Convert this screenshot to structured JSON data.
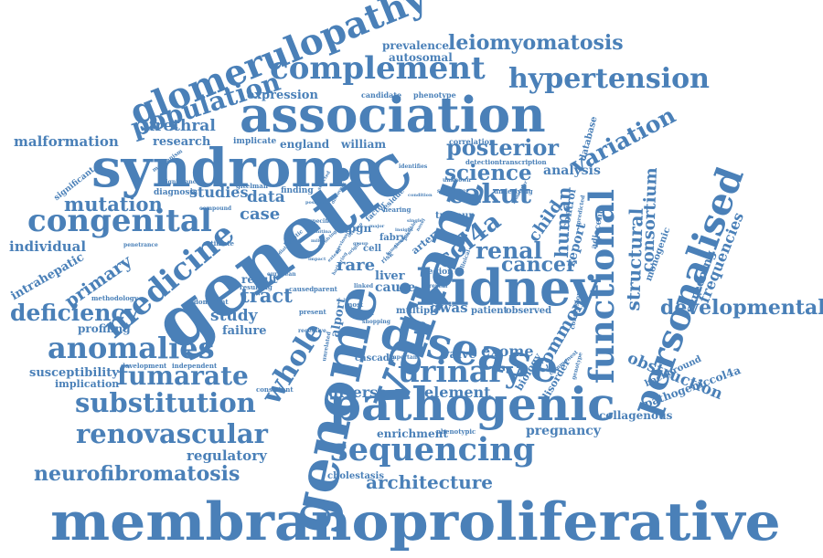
{
  "color": "#4a80b8",
  "words": {
    "membranoproliferative": "membranoproliferative",
    "genetic": "genetic",
    "variant": "variant",
    "genome": "genome",
    "syndrome": "syndrome",
    "association": "association",
    "kidney": "kidney",
    "pathogenic": "pathogenic",
    "disease": "disease",
    "personalised": "personalised",
    "functional": "functional",
    "glomerulopathy": "glomerulopathy",
    "complement": "complement",
    "congenital": "congenital",
    "medicine": "medicine",
    "sequencing": "sequencing",
    "anomalies": "anomalies",
    "substitution": "substitution",
    "renovascular": "renovascular",
    "urinary": "urinary",
    "fumarate": "fumarate",
    "hypertension": "hypertension",
    "population": "population",
    "neurofibromatosis": "neurofibromatosis",
    "developmental": "developmental",
    "leiomyomatosis": "leiomyomatosis",
    "whole": "whole",
    "deficiency": "deficiency",
    "col4a": "col4a",
    "cakut": "cakut",
    "posterior": "posterior",
    "science": "science",
    "renal": "renal",
    "variation": "variation",
    "cancer": "cancer",
    "mutation": "mutation",
    "tract": "tract",
    "architecture": "architecture",
    "diverse": "diverse",
    "element": "element",
    "exome": "exome",
    "structural": "structural",
    "consortium": "consortium",
    "human": "human",
    "child": "child",
    "obstruction": "obstruction",
    "frequencies": "frequencies",
    "screening": "screening",
    "common": "common",
    "primary": "primary",
    "urethral": "urethral",
    "malformation": "malformation",
    "research": "research",
    "expression": "expression",
    "individual": "individual",
    "intrahepatic": "intrahepatic",
    "profiling": "profiling",
    "susceptibility": "susceptibility",
    "implication": "implication",
    "regulatory": "regulatory",
    "study": "study",
    "failure": "failure",
    "data": "data",
    "case": "case",
    "studies": "studies",
    "gwas": "gwas",
    "valve": "valve",
    "enrichment": "enrichment",
    "pregnancy": "pregnancy",
    "collagenous": "collagenous",
    "pathogeniccol4a": "pathogeniccol4a",
    "analysis": "analysis",
    "report": "report",
    "rare": "rare",
    "result": "result",
    "cause": "cause",
    "liver": "liver",
    "alport": "alport",
    "england": "england",
    "william": "william",
    "prevalence": "prevalence",
    "autosomal": "autosomal",
    "cholestasis": "cholestasis",
    "biology": "biology",
    "disorder": "disorder",
    "background": "background",
    "control": "control",
    "monogenic": "monogenic",
    "adjacent": "adjacent",
    "database": "database",
    "patient": "patient",
    "observed": "observed",
    "multiple": "multiple",
    "cascade": "cascade",
    "mpgn": "mpgn",
    "fabry": "fabry",
    "artery": "artery",
    "tumour": "tumour",
    "cell": "cell",
    "region": "region",
    "finding": "finding",
    "significant": "significant",
    "diagnosis": "diagnosis",
    "implicate": "implicate",
    "candidate": "candidate",
    "phenotype": "phenotype",
    "correlation": "correlation",
    "detection": "detection",
    "transcription": "transcription",
    "methodology": "methodology",
    "dominant": "dominant",
    "resulting": "resulting",
    "caused": "caused",
    "parent": "parent",
    "present": "present",
    "most": "most",
    "recessive": "recessive",
    "important": "important",
    "phenotypic": "phenotypic",
    "consistent": "consistent",
    "development": "development",
    "independent": "independent",
    "penetrance": "penetrance",
    "estimate": "estimate",
    "compound": "compound",
    "mechanism": "mechanism",
    "significance": "significance",
    "gitelman": "gitelman",
    "conclusion": "conclusion",
    "genotype": "genotype",
    "identifies": "identifies",
    "unknown": "unknown",
    "sequence": "sequence",
    "residue": "residue",
    "factor": "factor",
    "hearing": "hearing",
    "underlying": "underlying",
    "predicted": "predicted",
    "reveal": "reveal",
    "european": "european",
    "hepatic": "hepatic",
    "specific": "specific",
    "cohort": "cohort",
    "linked": "linked",
    "shopping": "shopping",
    "commonest": "commonest",
    "unrelated": "unrelated",
    "risk": "risk",
    "clinical": "clinical",
    "condition": "condition",
    "positive": "positive",
    "discovery": "discovery",
    "molecular": "molecular",
    "selected": "selected",
    "single": "single",
    "novel": "novel",
    "mild": "mild",
    "mitina": "mitina",
    "involving": "involving",
    "harboring": "harboring",
    "overlap": "overlap",
    "genomic": "genomic",
    "paediatric": "paediatric",
    "insight": "insight",
    "origin": "origin",
    "extend": "extend",
    "function": "function",
    "impact": "impact",
    "possible": "possible",
    "group": "group",
    "major": "major",
    "previously": "previously"
  }
}
